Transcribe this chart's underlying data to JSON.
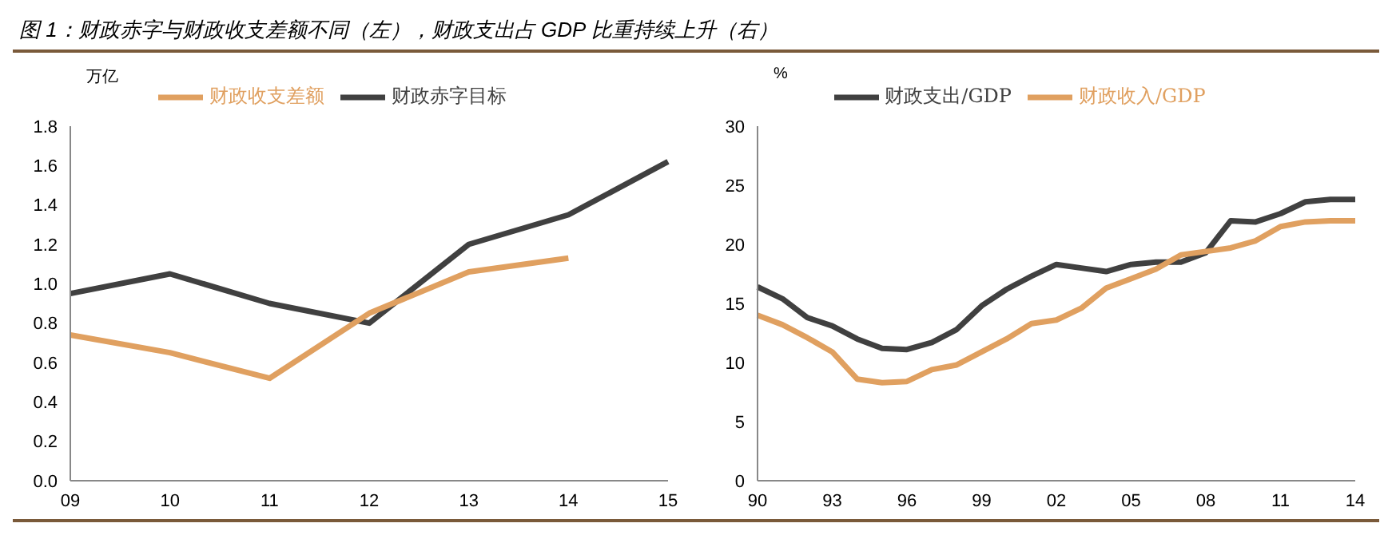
{
  "chart_data": [
    {
      "type": "line",
      "title": "图 1：财政赤字与财政收支差额不同（左），财政支出占 GDP 比重持续上升（右）",
      "ylabel": "万亿",
      "categories": [
        "09",
        "10",
        "11",
        "12",
        "13",
        "14",
        "15"
      ],
      "series": [
        {
          "name": "财政赤字目标",
          "color": "#404040",
          "values": [
            0.95,
            1.05,
            0.9,
            0.8,
            1.2,
            1.35,
            1.62
          ]
        },
        {
          "name": "财政收支差额",
          "color": "#e0a060",
          "values": [
            0.74,
            0.65,
            0.52,
            0.85,
            1.06,
            1.13,
            null
          ]
        }
      ],
      "ylim": [
        0,
        1.8
      ],
      "yticks": [
        {
          "value": 0,
          "label": "0.0"
        },
        {
          "value": 0.2,
          "label": "0.2"
        },
        {
          "value": 0.4,
          "label": "0.4"
        },
        {
          "value": 0.6,
          "label": "0.6"
        },
        {
          "value": 0.8,
          "label": "0.8"
        },
        {
          "value": 1,
          "label": "1.0"
        },
        {
          "value": 1.2,
          "label": "1.2"
        },
        {
          "value": 1.4,
          "label": "1.4"
        },
        {
          "value": 1.6,
          "label": "1.6"
        },
        {
          "value": 1.8,
          "label": "1.8"
        }
      ],
      "grid": false,
      "legend": "top",
      "marker": "none",
      "line_style": "solid"
    },
    {
      "type": "line",
      "ylabel": "%",
      "categories": [
        "90",
        null,
        null,
        "93",
        null,
        null,
        "96",
        null,
        null,
        "99",
        null,
        null,
        "02",
        null,
        null,
        "05",
        null,
        null,
        "08",
        null,
        null,
        "11",
        null,
        null,
        "14"
      ],
      "series": [
        {
          "name": "财政支出/GDP",
          "color": "#404040",
          "values": [
            16.4,
            15.4,
            13.8,
            13.1,
            12.0,
            11.2,
            11.1,
            11.7,
            12.8,
            14.8,
            16.2,
            17.3,
            18.3,
            18.0,
            17.7,
            18.3,
            18.5,
            18.5,
            19.3,
            22.0,
            21.9,
            22.6,
            23.6,
            23.8,
            23.8
          ]
        },
        {
          "name": "财政收入/GDP",
          "color": "#e0a060",
          "values": [
            14.0,
            13.2,
            12.1,
            10.9,
            8.6,
            8.3,
            8.4,
            9.4,
            9.8,
            10.9,
            12.0,
            13.3,
            13.6,
            14.6,
            16.3,
            17.1,
            17.9,
            19.1,
            19.4,
            19.7,
            20.3,
            21.5,
            21.9,
            22.0,
            22.0
          ]
        }
      ],
      "ylim": [
        0,
        30
      ],
      "yticks": [
        0,
        5,
        10,
        15,
        20,
        25,
        30
      ],
      "grid": false,
      "legend": "top",
      "marker": "none",
      "line_style": "solid"
    }
  ]
}
